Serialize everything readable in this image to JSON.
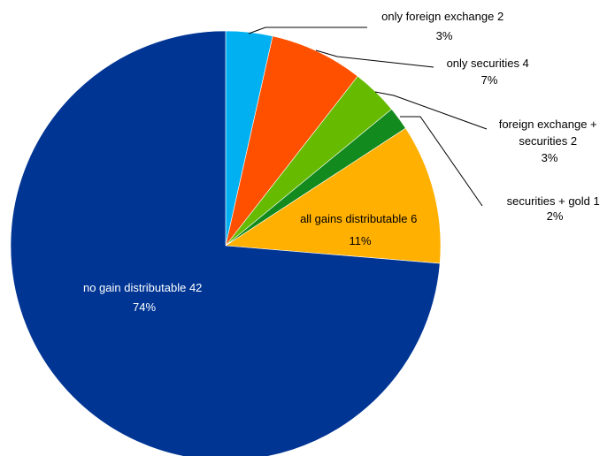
{
  "chart_data": {
    "type": "pie",
    "title": "",
    "slices": [
      {
        "name": "only foreign exchange",
        "count": 2,
        "percent": "3%",
        "value": 2,
        "color": "#00B0F0"
      },
      {
        "name": "only securities",
        "count": 4,
        "percent": "7%",
        "value": 4,
        "color": "#FF5000"
      },
      {
        "name": "foreign exchange + securities",
        "count": 2,
        "percent": "3%",
        "value": 2,
        "color": "#66BB00"
      },
      {
        "name": "securities + gold",
        "count": 1,
        "percent": "2%",
        "value": 1,
        "color": "#138A1E"
      },
      {
        "name": "all gains distributable",
        "count": 6,
        "percent": "11%",
        "value": 6,
        "color": "#FFB000"
      },
      {
        "name": "no gain distributable",
        "count": 42,
        "percent": "74%",
        "value": 42,
        "color": "#003594"
      }
    ],
    "labels": {
      "s0": {
        "line1": "only foreign exchange 2",
        "line2": "3%"
      },
      "s1": {
        "line1": "only securities 4",
        "line2": "7%"
      },
      "s2": {
        "line1": "foreign exchange +",
        "line2": "securities 2",
        "line3": "3%"
      },
      "s3": {
        "line1": "securities + gold  1",
        "line2": "2%"
      },
      "s4": {
        "line1": "all gains distributable 6",
        "line2": "11%"
      },
      "s5": {
        "line1": "no gain distributable 42",
        "line2": "74%"
      }
    }
  }
}
